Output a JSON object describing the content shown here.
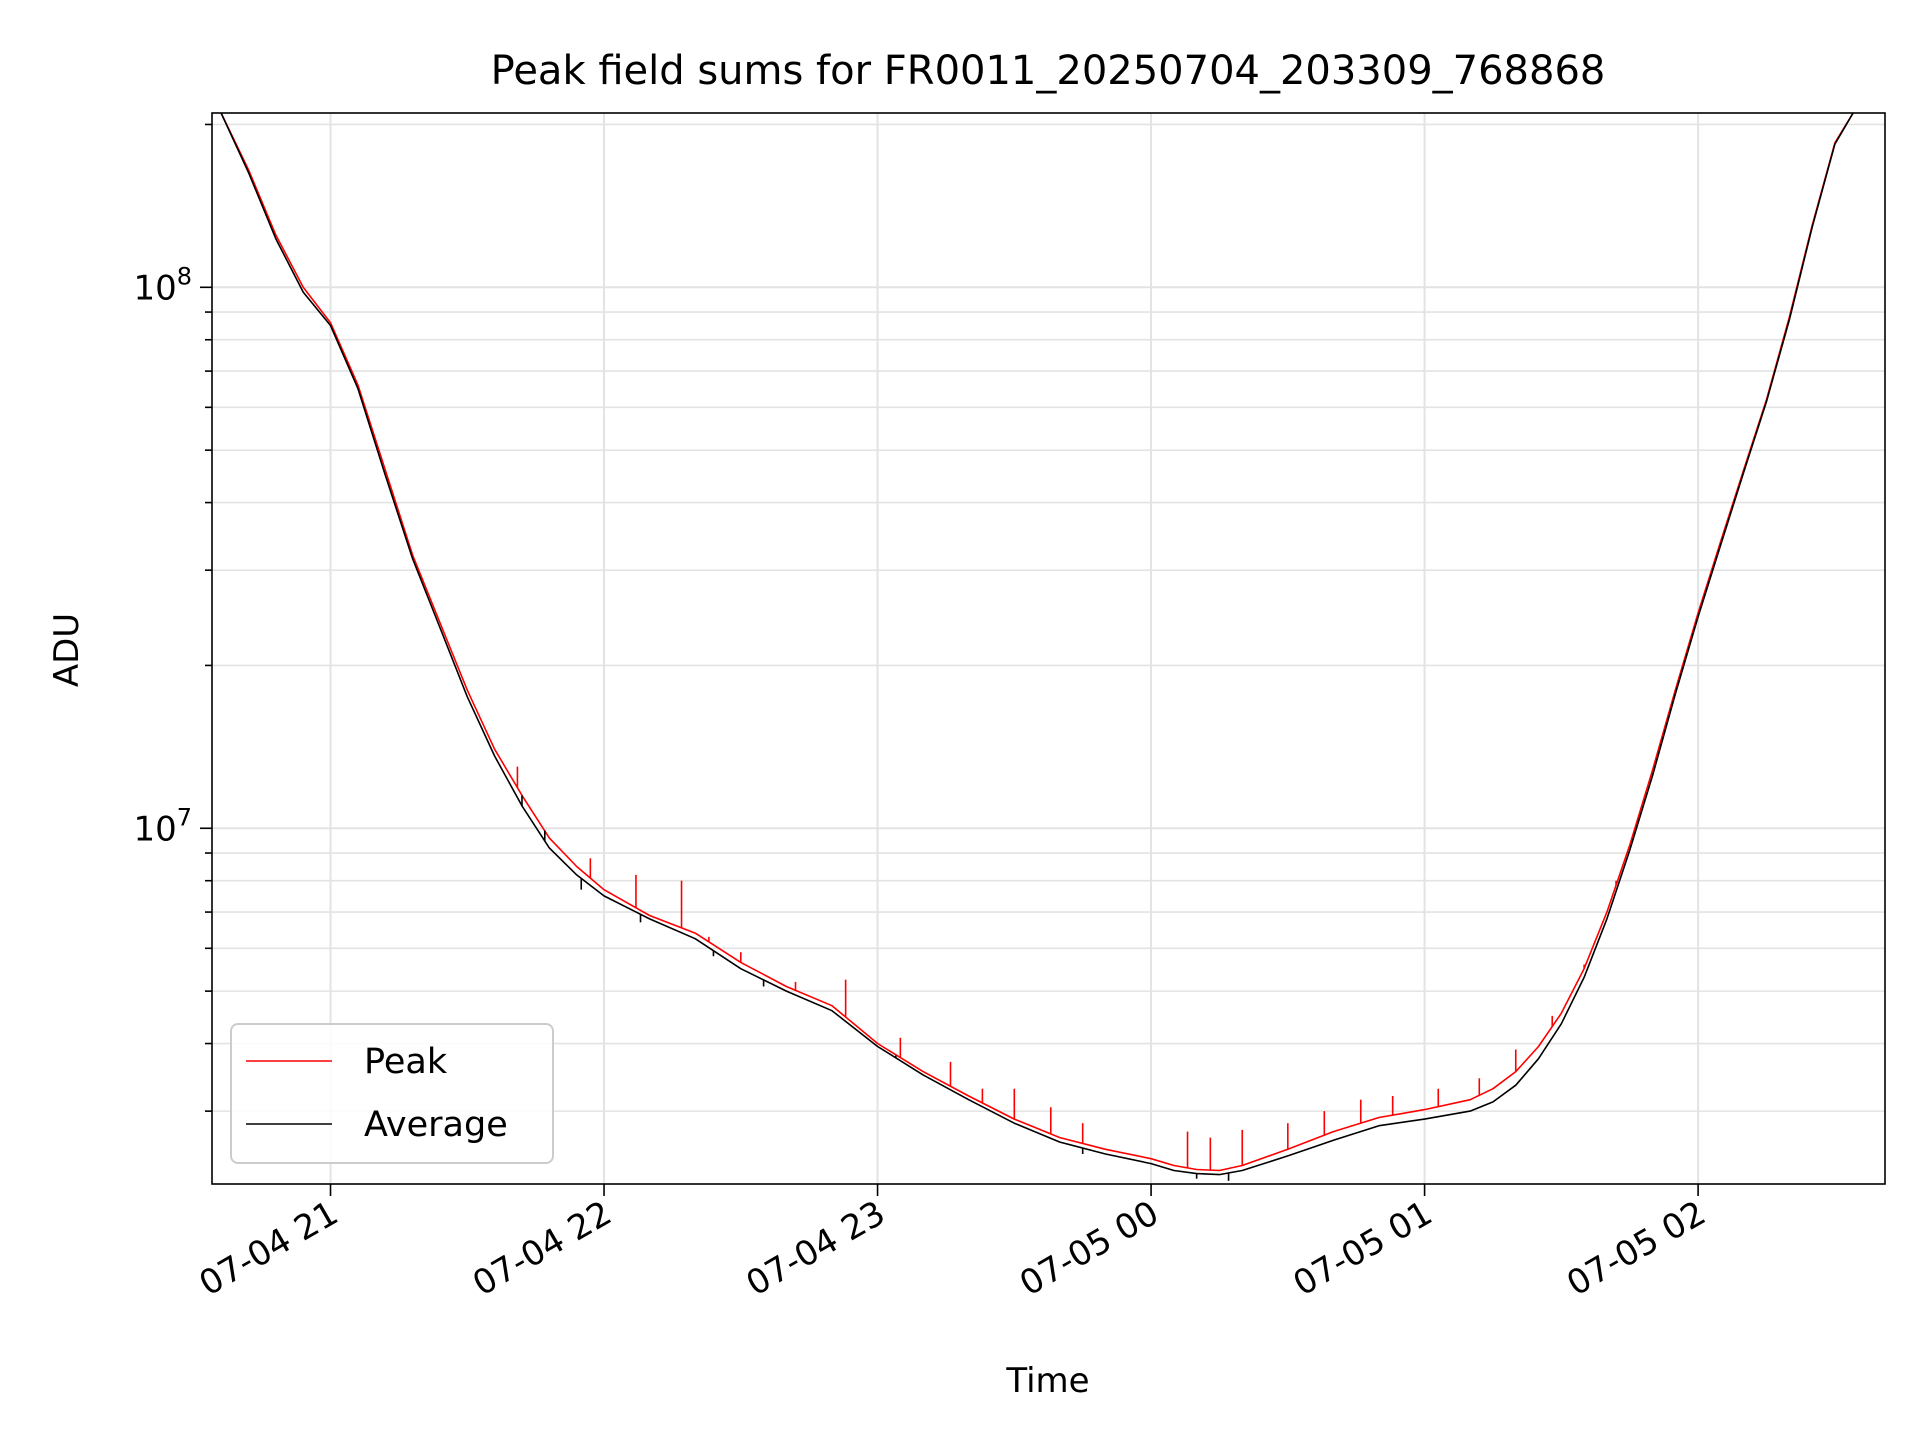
{
  "chart_data": {
    "type": "line",
    "title": "Peak field sums for FR0011_20250704_203309_768868",
    "xlabel": "Time",
    "ylabel": "ADU",
    "yscale": "log",
    "ylim": [
      2200000,
      210000000
    ],
    "xlim": [
      "2025-07-04 20:34",
      "2025-07-05 02:41"
    ],
    "x_ticks": [
      {
        "t": "2025-07-04 21:00",
        "label": "07-04 21"
      },
      {
        "t": "2025-07-04 22:00",
        "label": "07-04 22"
      },
      {
        "t": "2025-07-04 23:00",
        "label": "07-04 23"
      },
      {
        "t": "2025-07-05 00:00",
        "label": "07-05 00"
      },
      {
        "t": "2025-07-05 01:00",
        "label": "07-05 01"
      },
      {
        "t": "2025-07-05 02:00",
        "label": "07-05 02"
      }
    ],
    "y_ticks": [
      {
        "value": 10000000,
        "base": "10",
        "exp": "7"
      },
      {
        "value": 100000000,
        "base": "10",
        "exp": "8"
      }
    ],
    "grid": true,
    "legend_position": "lower-left",
    "series": [
      {
        "name": "Peak",
        "color": "#ff0000",
        "x": [
          "2025-07-04 20:36",
          "2025-07-04 20:42",
          "2025-07-04 20:48",
          "2025-07-04 20:54",
          "2025-07-04 21:00",
          "2025-07-04 21:06",
          "2025-07-04 21:12",
          "2025-07-04 21:18",
          "2025-07-04 21:24",
          "2025-07-04 21:30",
          "2025-07-04 21:36",
          "2025-07-04 21:42",
          "2025-07-04 21:48",
          "2025-07-04 21:54",
          "2025-07-04 22:00",
          "2025-07-04 22:10",
          "2025-07-04 22:20",
          "2025-07-04 22:30",
          "2025-07-04 22:40",
          "2025-07-04 22:50",
          "2025-07-04 23:00",
          "2025-07-04 23:10",
          "2025-07-04 23:20",
          "2025-07-04 23:30",
          "2025-07-04 23:40",
          "2025-07-04 23:50",
          "2025-07-05 00:00",
          "2025-07-05 00:05",
          "2025-07-05 00:10",
          "2025-07-05 00:15",
          "2025-07-05 00:20",
          "2025-07-05 00:30",
          "2025-07-05 00:40",
          "2025-07-05 00:50",
          "2025-07-05 01:00",
          "2025-07-05 01:10",
          "2025-07-05 01:15",
          "2025-07-05 01:20",
          "2025-07-05 01:25",
          "2025-07-05 01:30",
          "2025-07-05 01:35",
          "2025-07-05 01:40",
          "2025-07-05 01:45",
          "2025-07-05 01:50",
          "2025-07-05 01:55",
          "2025-07-05 02:00",
          "2025-07-05 02:05",
          "2025-07-05 02:10",
          "2025-07-05 02:15",
          "2025-07-05 02:20",
          "2025-07-05 02:25",
          "2025-07-05 02:30",
          "2025-07-05 02:34"
        ],
        "values": [
          210000000,
          165000000,
          125000000,
          100000000,
          86000000,
          66000000,
          46000000,
          32000000,
          24000000,
          18000000,
          14000000,
          11500000,
          9600000,
          8500000,
          7700000,
          6900000,
          6400000,
          5650000,
          5100000,
          4700000,
          4000000,
          3550000,
          3200000,
          2900000,
          2680000,
          2550000,
          2450000,
          2380000,
          2340000,
          2330000,
          2380000,
          2550000,
          2750000,
          2920000,
          3020000,
          3150000,
          3300000,
          3550000,
          3950000,
          4550000,
          5500000,
          7000000,
          9300000,
          12800000,
          18000000,
          25000000,
          34000000,
          46000000,
          62000000,
          88000000,
          130000000,
          185000000,
          210000000
        ],
        "spikes": [
          {
            "t": "2025-07-04 21:41",
            "value": 13000000
          },
          {
            "t": "2025-07-04 21:57",
            "value": 8800000
          },
          {
            "t": "2025-07-04 22:07",
            "value": 8200000
          },
          {
            "t": "2025-07-04 22:17",
            "value": 8000000
          },
          {
            "t": "2025-07-04 22:23",
            "value": 6300000
          },
          {
            "t": "2025-07-04 22:30",
            "value": 5900000
          },
          {
            "t": "2025-07-04 22:42",
            "value": 5200000
          },
          {
            "t": "2025-07-04 22:53",
            "value": 5250000
          },
          {
            "t": "2025-07-04 23:05",
            "value": 4100000
          },
          {
            "t": "2025-07-04 23:16",
            "value": 3700000
          },
          {
            "t": "2025-07-04 23:23",
            "value": 3300000
          },
          {
            "t": "2025-07-04 23:30",
            "value": 3300000
          },
          {
            "t": "2025-07-04 23:38",
            "value": 3050000
          },
          {
            "t": "2025-07-04 23:45",
            "value": 2850000
          },
          {
            "t": "2025-07-05 00:08",
            "value": 2750000
          },
          {
            "t": "2025-07-05 00:13",
            "value": 2680000
          },
          {
            "t": "2025-07-05 00:20",
            "value": 2770000
          },
          {
            "t": "2025-07-05 00:30",
            "value": 2850000
          },
          {
            "t": "2025-07-05 00:38",
            "value": 3000000
          },
          {
            "t": "2025-07-05 00:46",
            "value": 3150000
          },
          {
            "t": "2025-07-05 00:53",
            "value": 3200000
          },
          {
            "t": "2025-07-05 01:03",
            "value": 3300000
          },
          {
            "t": "2025-07-05 01:12",
            "value": 3450000
          },
          {
            "t": "2025-07-05 01:20",
            "value": 3900000
          },
          {
            "t": "2025-07-05 01:28",
            "value": 4500000
          },
          {
            "t": "2025-07-05 01:35",
            "value": 5600000
          },
          {
            "t": "2025-07-05 01:42",
            "value": 8000000
          }
        ]
      },
      {
        "name": "Average",
        "color": "#000000",
        "x": [
          "2025-07-04 20:36",
          "2025-07-04 20:42",
          "2025-07-04 20:48",
          "2025-07-04 20:54",
          "2025-07-04 21:00",
          "2025-07-04 21:06",
          "2025-07-04 21:12",
          "2025-07-04 21:18",
          "2025-07-04 21:24",
          "2025-07-04 21:30",
          "2025-07-04 21:36",
          "2025-07-04 21:42",
          "2025-07-04 21:48",
          "2025-07-04 21:54",
          "2025-07-04 22:00",
          "2025-07-04 22:10",
          "2025-07-04 22:20",
          "2025-07-04 22:30",
          "2025-07-04 22:40",
          "2025-07-04 22:50",
          "2025-07-04 23:00",
          "2025-07-04 23:10",
          "2025-07-04 23:20",
          "2025-07-04 23:30",
          "2025-07-04 23:40",
          "2025-07-04 23:50",
          "2025-07-05 00:00",
          "2025-07-05 00:05",
          "2025-07-05 00:10",
          "2025-07-05 00:15",
          "2025-07-05 00:20",
          "2025-07-05 00:30",
          "2025-07-05 00:40",
          "2025-07-05 00:50",
          "2025-07-05 01:00",
          "2025-07-05 01:10",
          "2025-07-05 01:15",
          "2025-07-05 01:20",
          "2025-07-05 01:25",
          "2025-07-05 01:30",
          "2025-07-05 01:35",
          "2025-07-05 01:40",
          "2025-07-05 01:45",
          "2025-07-05 01:50",
          "2025-07-05 01:55",
          "2025-07-05 02:00",
          "2025-07-05 02:05",
          "2025-07-05 02:10",
          "2025-07-05 02:15",
          "2025-07-05 02:20",
          "2025-07-05 02:25",
          "2025-07-05 02:30",
          "2025-07-05 02:34"
        ],
        "values": [
          210000000,
          163000000,
          123000000,
          98000000,
          85000000,
          65000000,
          45000000,
          31500000,
          23500000,
          17500000,
          13600000,
          11000000,
          9200000,
          8200000,
          7500000,
          6800000,
          6250000,
          5500000,
          5000000,
          4600000,
          3950000,
          3500000,
          3150000,
          2850000,
          2630000,
          2500000,
          2400000,
          2330000,
          2300000,
          2290000,
          2330000,
          2480000,
          2650000,
          2820000,
          2900000,
          3000000,
          3120000,
          3350000,
          3750000,
          4350000,
          5300000,
          6800000,
          9100000,
          12500000,
          17700000,
          24600000,
          33500000,
          45500000,
          61500000,
          87000000,
          129000000,
          184000000,
          210000000
        ],
        "dips": [
          {
            "t": "2025-07-04 21:42",
            "value": 11500000
          },
          {
            "t": "2025-07-04 21:47",
            "value": 9900000
          },
          {
            "t": "2025-07-04 21:55",
            "value": 7700000
          },
          {
            "t": "2025-07-04 22:08",
            "value": 6700000
          },
          {
            "t": "2025-07-04 22:24",
            "value": 5800000
          },
          {
            "t": "2025-07-04 22:35",
            "value": 5100000
          },
          {
            "t": "2025-07-04 23:04",
            "value": 3800000
          },
          {
            "t": "2025-07-04 23:45",
            "value": 2500000
          },
          {
            "t": "2025-07-05 00:10",
            "value": 2250000
          },
          {
            "t": "2025-07-05 00:17",
            "value": 2230000
          }
        ]
      }
    ]
  }
}
